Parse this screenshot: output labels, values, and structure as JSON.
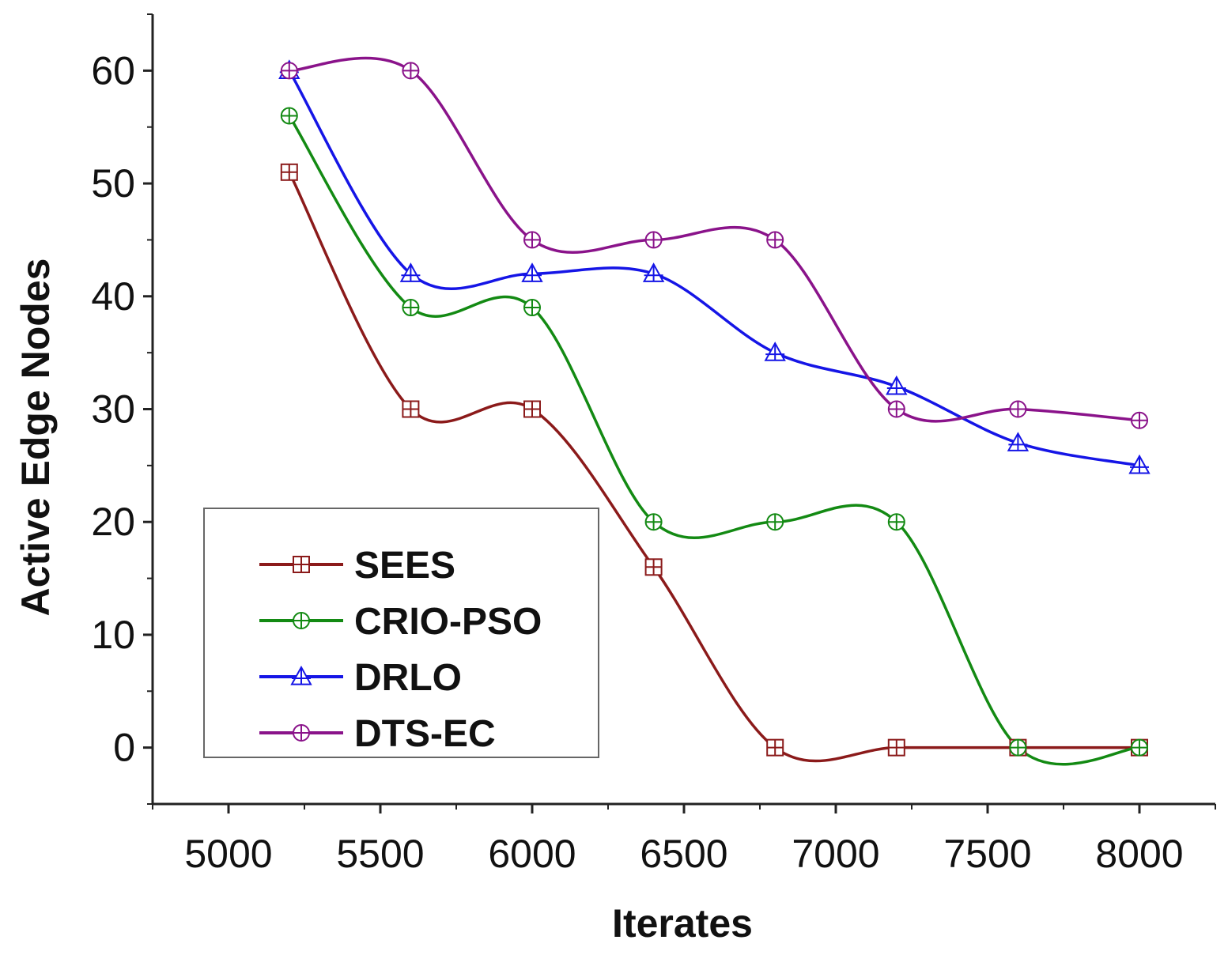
{
  "chart_data": {
    "type": "line",
    "title": "",
    "xlabel": "Iterates",
    "ylabel": "Active Edge Nodes",
    "xlim": [
      4750,
      8250
    ],
    "ylim": [
      -5,
      65
    ],
    "x_ticks": [
      5000,
      5500,
      6000,
      6500,
      7000,
      7500,
      8000
    ],
    "y_ticks": [
      0,
      10,
      20,
      30,
      40,
      50,
      60
    ],
    "x_tick_labels": [
      "5000",
      "5500",
      "6000",
      "6500",
      "7000",
      "7500",
      "8000"
    ],
    "y_tick_labels": [
      "0",
      "10",
      "20",
      "30",
      "40",
      "50",
      "60"
    ],
    "x": [
      5200,
      5600,
      6000,
      6400,
      6800,
      7200,
      7600,
      8000
    ],
    "series": [
      {
        "name": "SEES",
        "color": "#8b1a1a",
        "marker": "square-cross",
        "values": [
          51,
          30,
          30,
          16,
          0,
          0,
          0,
          0
        ]
      },
      {
        "name": "CRIO-PSO",
        "color": "#138a13",
        "marker": "circle-cross",
        "values": [
          56,
          39,
          39,
          20,
          20,
          20,
          0,
          0
        ]
      },
      {
        "name": "DRLO",
        "color": "#1515e6",
        "marker": "triangle-cross",
        "values": [
          60,
          42,
          42,
          42,
          35,
          32,
          27,
          25
        ]
      },
      {
        "name": "DTS-EC",
        "color": "#8a138a",
        "marker": "circle-cross",
        "values": [
          60,
          60,
          45,
          45,
          45,
          30,
          30,
          29
        ]
      }
    ],
    "smooth": true,
    "grid": false,
    "legend_position": "bottom-left"
  }
}
